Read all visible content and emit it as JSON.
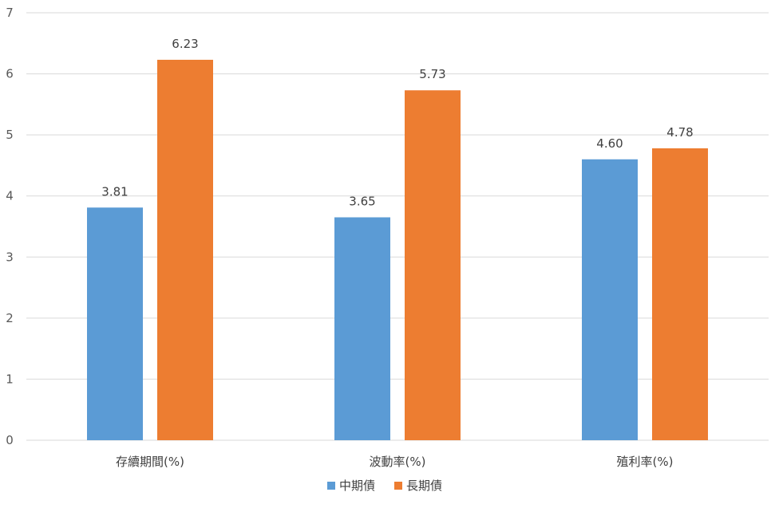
{
  "chart_data": {
    "type": "bar",
    "categories": [
      "存續期間(%)",
      "波動率(%)",
      "殖利率(%)"
    ],
    "series": [
      {
        "name": "中期債",
        "values": [
          3.81,
          3.65,
          4.6
        ],
        "labels": [
          "3.81",
          "3.65",
          "4.60"
        ],
        "color": "#5b9bd5"
      },
      {
        "name": "長期債",
        "values": [
          6.23,
          5.73,
          4.78
        ],
        "labels": [
          "6.23",
          "5.73",
          "4.78"
        ],
        "color": "#ed7d31"
      }
    ],
    "ylim": [
      0,
      7
    ],
    "yticks": [
      "0",
      "1",
      "2",
      "3",
      "4",
      "5",
      "6",
      "7"
    ],
    "grid": true,
    "legend_position": "bottom",
    "gridline_color": "#d9d9d9"
  }
}
